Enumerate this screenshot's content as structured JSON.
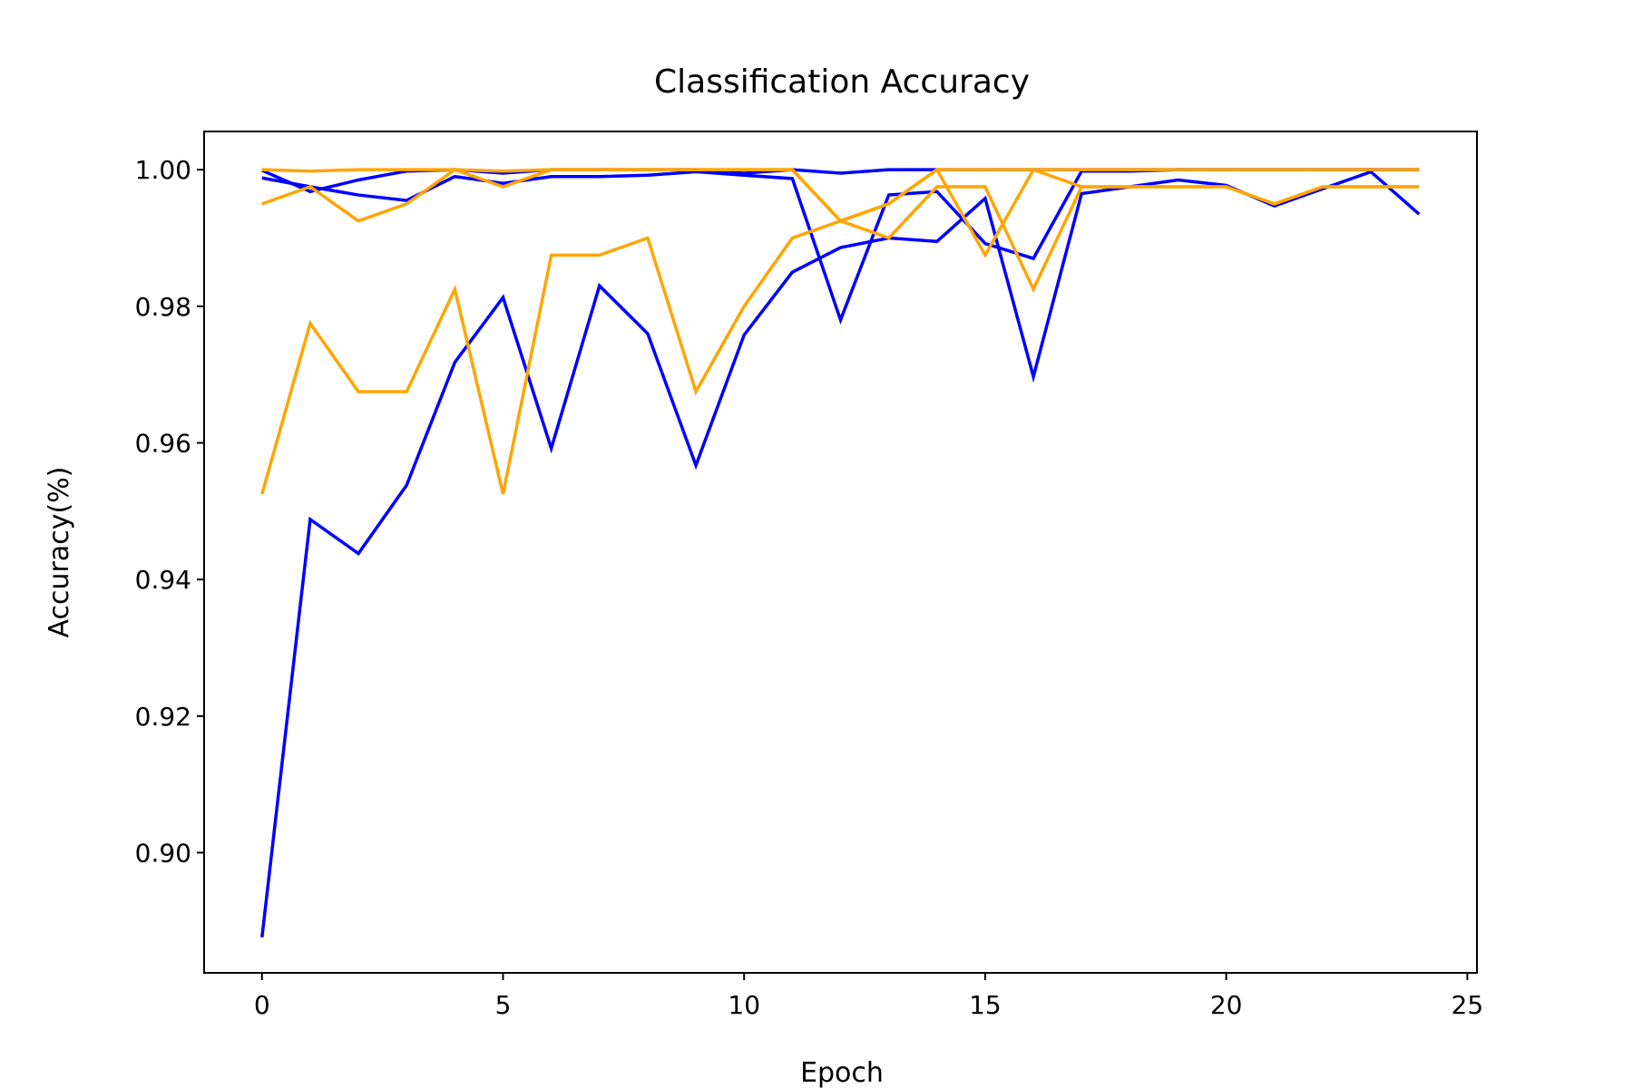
{
  "chart_data": {
    "type": "line",
    "title": "Classification Accuracy",
    "xlabel": "Epoch",
    "ylabel": "Accuracy(%)",
    "xlim": [
      -1.2,
      25.2
    ],
    "ylim": [
      0.8824,
      1.0056
    ],
    "x_ticks": [
      0,
      5,
      10,
      15,
      20,
      25
    ],
    "y_ticks": [
      0.9,
      0.92,
      0.94,
      0.96,
      0.98,
      1.0
    ],
    "x_tick_labels": [
      "0",
      "5",
      "10",
      "15",
      "20",
      "25"
    ],
    "y_tick_labels": [
      "0.90",
      "0.92",
      "0.94",
      "0.96",
      "0.98",
      "1.00"
    ],
    "grid": false,
    "legend": false,
    "x": [
      0,
      1,
      2,
      3,
      4,
      5,
      6,
      7,
      8,
      9,
      10,
      11,
      12,
      13,
      14,
      15,
      16,
      17,
      18,
      19,
      20,
      21,
      22,
      23,
      24
    ],
    "series": [
      {
        "color": "#0000ff",
        "values": [
          0.9999,
          0.9968,
          0.9985,
          0.9998,
          1.0,
          0.9995,
          1.0,
          1.0,
          1.0,
          1.0,
          0.9995,
          1.0,
          0.9995,
          1.0,
          1.0,
          1.0,
          1.0,
          1.0,
          1.0,
          1.0,
          1.0,
          1.0,
          1.0,
          1.0,
          1.0
        ]
      },
      {
        "color": "#0000ff",
        "values": [
          0.9988,
          0.9975,
          0.9963,
          0.9955,
          0.999,
          0.998,
          0.999,
          0.999,
          0.9992,
          0.9997,
          0.9992,
          0.9987,
          0.978,
          0.9963,
          0.9968,
          0.9892,
          0.987,
          0.9998,
          0.9998,
          1.0,
          1.0,
          1.0,
          1.0,
          1.0,
          1.0
        ]
      },
      {
        "color": "#0000ff",
        "values": [
          0.8876,
          0.9488,
          0.9438,
          0.9538,
          0.9718,
          0.9813,
          0.9592,
          0.983,
          0.976,
          0.9567,
          0.9758,
          0.985,
          0.9886,
          0.99,
          0.9895,
          0.9958,
          0.9697,
          0.9965,
          0.9975,
          0.9985,
          0.9977,
          0.9947,
          0.9972,
          0.9997,
          0.9935
        ]
      },
      {
        "color": "#ffa500",
        "values": [
          1.0,
          0.9998,
          1.0,
          1.0,
          1.0,
          0.9998,
          1.0,
          1.0,
          1.0,
          1.0,
          1.0,
          1.0,
          0.9925,
          0.99,
          0.9975,
          0.9975,
          0.9825,
          0.9975,
          0.9975,
          0.9975,
          0.9975,
          0.995,
          0.9975,
          0.9975,
          0.9975
        ]
      },
      {
        "color": "#ffa500",
        "values": [
          0.995,
          0.9975,
          0.9925,
          0.995,
          1.0,
          0.9975,
          1.0,
          1.0,
          1.0,
          1.0,
          1.0,
          1.0,
          0.9925,
          0.995,
          1.0,
          0.9875,
          1.0,
          0.9975,
          0.9975,
          0.9975,
          0.9975,
          0.995,
          0.9975,
          0.9975,
          0.9975
        ]
      },
      {
        "color": "#ffa500",
        "values": [
          0.9525,
          0.9775,
          0.9675,
          0.9675,
          0.9825,
          0.9525,
          0.9875,
          0.9875,
          0.99,
          0.9675,
          0.98,
          0.99,
          0.9925,
          0.995,
          1.0,
          1.0,
          1.0,
          1.0,
          1.0,
          1.0,
          1.0,
          1.0,
          1.0,
          1.0,
          1.0
        ]
      }
    ]
  }
}
